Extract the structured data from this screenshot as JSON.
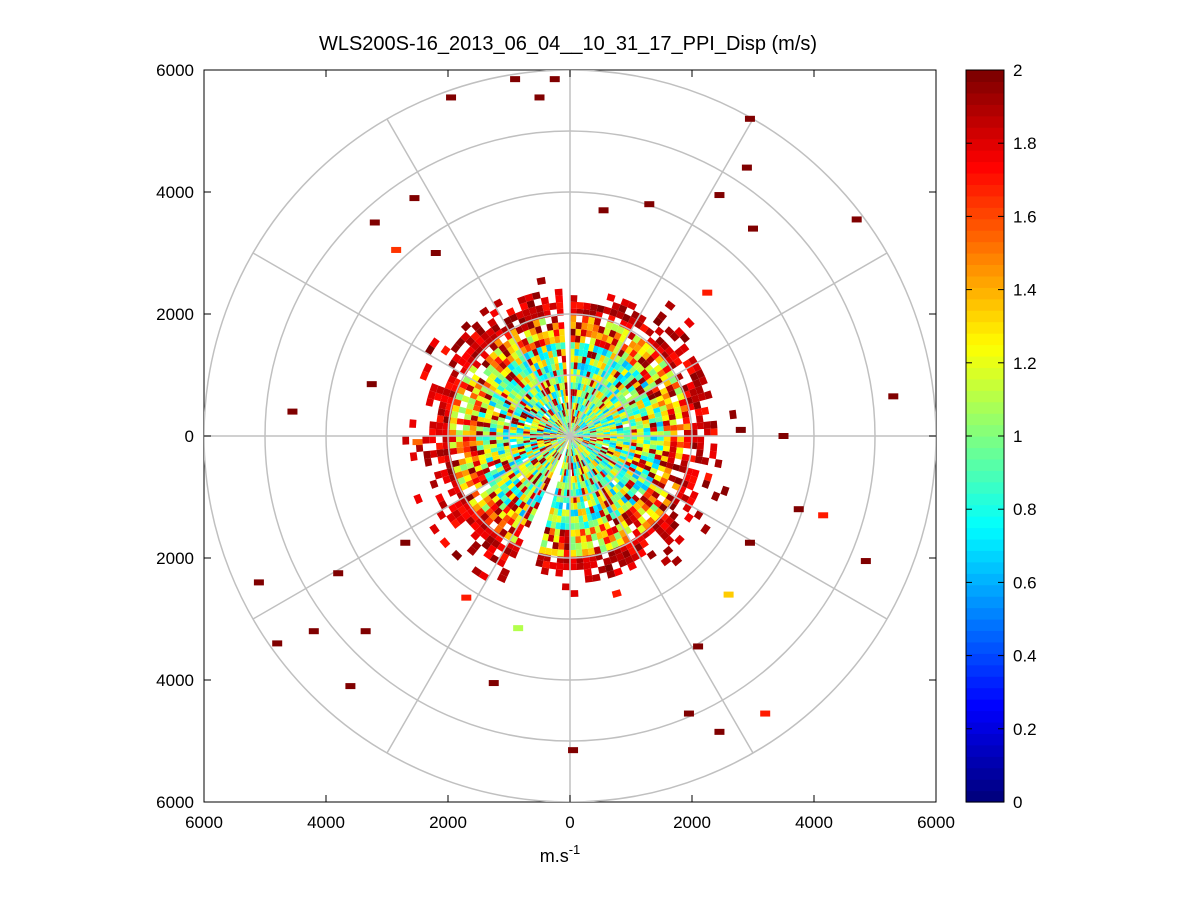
{
  "chart_data": {
    "type": "heatmap",
    "subtype": "polar-ppi",
    "title": "WLS200S-16_2013_06_04__10_31_17_PPI_Disp (m/s)",
    "xlabel": "m.s",
    "xlabel_sup": "-1",
    "ylabel": "",
    "xlim": [
      -6000,
      6000
    ],
    "ylim": [
      -6000,
      6000
    ],
    "x_ticks": [
      -6000,
      -4000,
      -2000,
      0,
      2000,
      4000,
      6000
    ],
    "x_tick_labels": [
      "6000",
      "4000",
      "2000",
      "0",
      "2000",
      "4000",
      "6000"
    ],
    "y_ticks": [
      6000,
      4000,
      2000,
      0,
      -2000,
      -4000,
      -6000
    ],
    "y_tick_labels": [
      "6000",
      "4000",
      "2000",
      "0",
      "2000",
      "4000",
      "6000"
    ],
    "polar_grid": {
      "rings": [
        1000,
        2000,
        3000,
        4000,
        5000,
        6000
      ],
      "spokes_deg": [
        0,
        30,
        60,
        90,
        120,
        150,
        180,
        210,
        240,
        270,
        300,
        330
      ]
    },
    "colorbar": {
      "min": 0,
      "max": 2,
      "ticks": [
        0,
        0.2,
        0.4,
        0.6,
        0.8,
        1,
        1.2,
        1.4,
        1.6,
        1.8,
        2
      ],
      "tick_labels": [
        "0",
        "0.2",
        "0.4",
        "0.6",
        "0.8",
        "1",
        "1.2",
        "1.4",
        "1.6",
        "1.8",
        "2"
      ],
      "colormap": "jet"
    },
    "data_description_values": {
      "dense_core_radius_max": 2200,
      "core_value_range": [
        0.7,
        1.3
      ],
      "edge_value": 2.0,
      "gap_sectors_deg": [
        [
          88,
          92
        ],
        [
          246,
          252
        ]
      ]
    },
    "sparse_points": [
      {
        "x": -1950,
        "y": 5550,
        "v": 2
      },
      {
        "x": -500,
        "y": 5550,
        "v": 2
      },
      {
        "x": -900,
        "y": 5850,
        "v": 2
      },
      {
        "x": -250,
        "y": 5850,
        "v": 2
      },
      {
        "x": 2950,
        "y": 5200,
        "v": 2
      },
      {
        "x": 2900,
        "y": 4400,
        "v": 2
      },
      {
        "x": 2450,
        "y": 3950,
        "v": 2
      },
      {
        "x": 4700,
        "y": 3550,
        "v": 2
      },
      {
        "x": -2550,
        "y": 3900,
        "v": 2
      },
      {
        "x": -3200,
        "y": 3500,
        "v": 2
      },
      {
        "x": -2850,
        "y": 3050,
        "v": 1.65
      },
      {
        "x": 3000,
        "y": 3400,
        "v": 2
      },
      {
        "x": 5300,
        "y": 650,
        "v": 2
      },
      {
        "x": -4550,
        "y": 400,
        "v": 2
      },
      {
        "x": -3250,
        "y": 850,
        "v": 2
      },
      {
        "x": 4150,
        "y": -1300,
        "v": 1.7
      },
      {
        "x": 4850,
        "y": -2050,
        "v": 2
      },
      {
        "x": -5100,
        "y": -2400,
        "v": 2
      },
      {
        "x": -4800,
        "y": -3400,
        "v": 2
      },
      {
        "x": -4200,
        "y": -3200,
        "v": 2
      },
      {
        "x": -3350,
        "y": -3200,
        "v": 2
      },
      {
        "x": -3600,
        "y": -4100,
        "v": 2
      },
      {
        "x": 2600,
        "y": -2600,
        "v": 1.35
      },
      {
        "x": 3200,
        "y": -4550,
        "v": 1.7
      },
      {
        "x": 2450,
        "y": -4850,
        "v": 2
      },
      {
        "x": 1950,
        "y": -4550,
        "v": 2
      },
      {
        "x": 50,
        "y": -5150,
        "v": 2
      },
      {
        "x": -1250,
        "y": -4050,
        "v": 2
      },
      {
        "x": -850,
        "y": -3150,
        "v": 1.1
      },
      {
        "x": 2100,
        "y": -3450,
        "v": 2
      },
      {
        "x": -3800,
        "y": -2250,
        "v": 2
      },
      {
        "x": -2700,
        "y": -1750,
        "v": 2
      },
      {
        "x": -1700,
        "y": -2650,
        "v": 1.7
      },
      {
        "x": 2950,
        "y": -1750,
        "v": 2
      },
      {
        "x": 3750,
        "y": -1200,
        "v": 2
      },
      {
        "x": -2500,
        "y": -100,
        "v": 1.55
      },
      {
        "x": 2800,
        "y": 100,
        "v": 2
      },
      {
        "x": 3500,
        "y": 0,
        "v": 2
      },
      {
        "x": 1300,
        "y": 3800,
        "v": 2
      },
      {
        "x": 550,
        "y": 3700,
        "v": 2
      },
      {
        "x": -2200,
        "y": 3000,
        "v": 2
      },
      {
        "x": 2250,
        "y": 2350,
        "v": 1.7
      }
    ]
  }
}
